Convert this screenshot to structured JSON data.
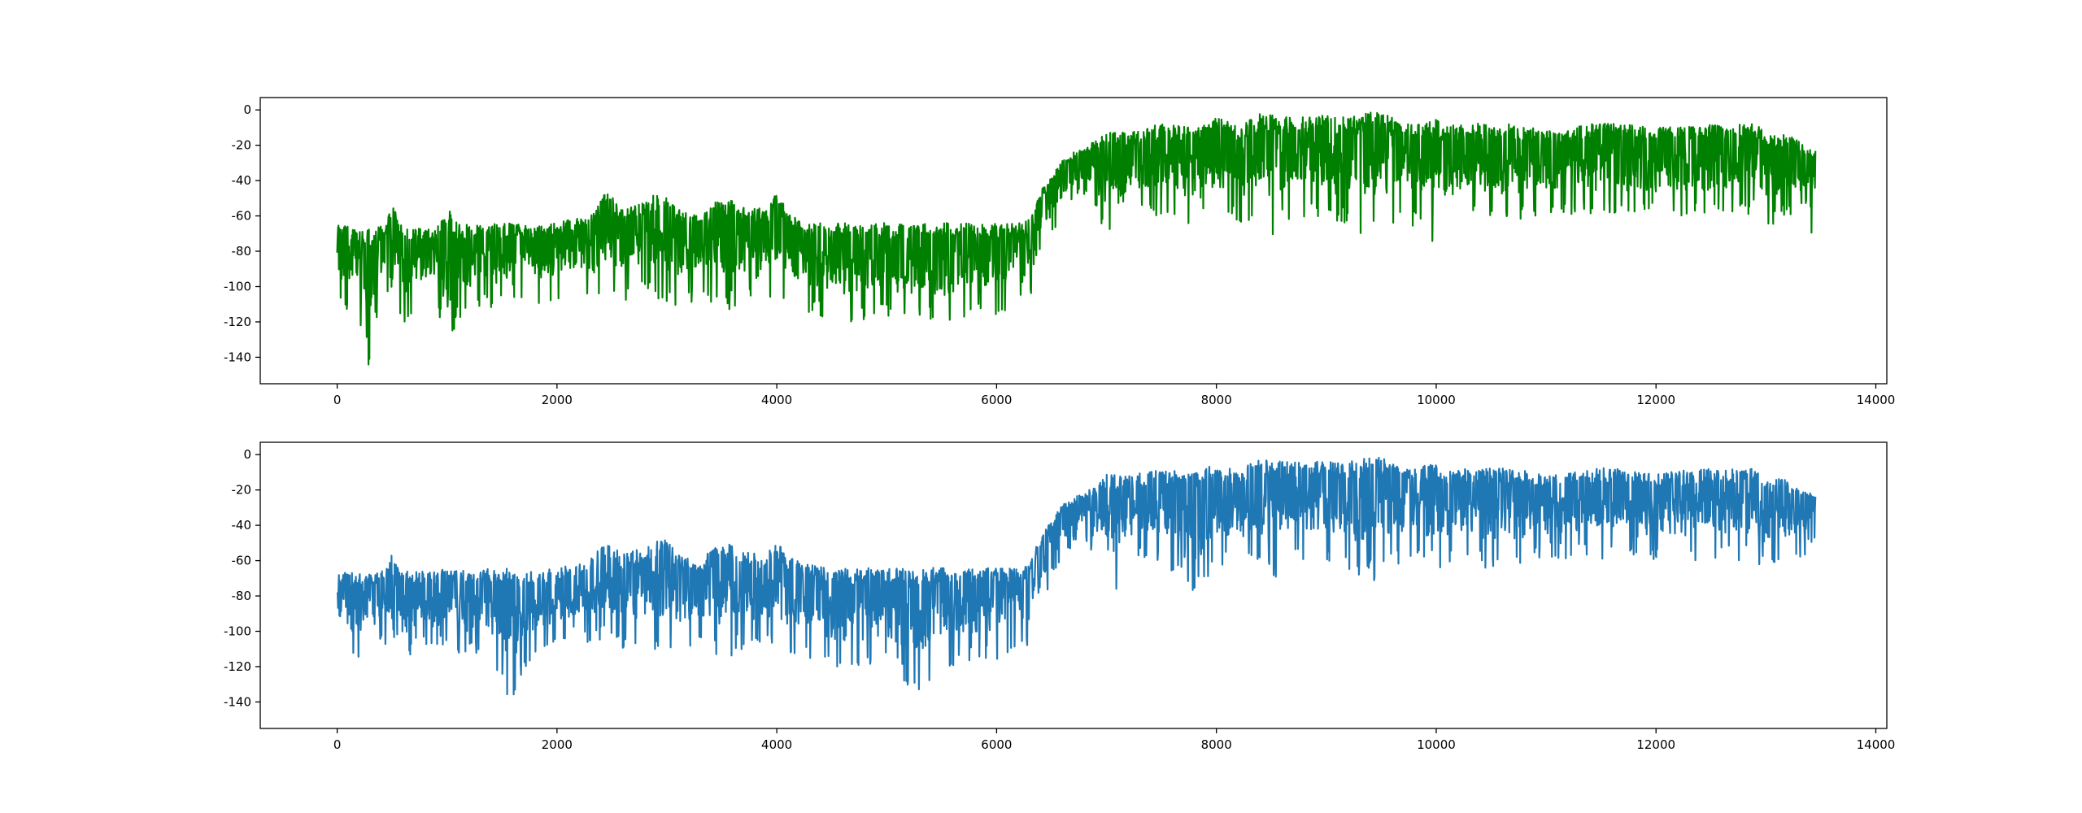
{
  "chart_data": [
    {
      "type": "line",
      "title": "",
      "xlabel": "",
      "ylabel": "",
      "xlim": [
        -700,
        14100
      ],
      "ylim": [
        -155,
        7
      ],
      "xticks": [
        0,
        2000,
        4000,
        6000,
        8000,
        10000,
        12000,
        14000
      ],
      "yticks": [
        0,
        -20,
        -40,
        -60,
        -80,
        -100,
        -120,
        -140
      ],
      "x_range": [
        0,
        13450
      ],
      "color": "#008000",
      "grid": false,
      "legend": "none",
      "series": [
        {
          "name": "",
          "x": [
            0,
            10,
            30,
            60,
            100,
            200,
            290,
            350,
            450,
            500,
            600,
            700,
            900,
            1020,
            1100,
            1300,
            1600,
            1800,
            2000,
            2200,
            2300,
            2450,
            2600,
            2800,
            2950,
            3100,
            3300,
            3500,
            3700,
            3900,
            4000,
            4100,
            4300,
            4600,
            5000,
            5400,
            5500,
            5700,
            6000,
            6200,
            6300,
            6340,
            6400,
            6500,
            6600,
            6700,
            6800,
            6900,
            7000,
            7100,
            7200,
            7500,
            7800,
            8000,
            8200,
            8400,
            8500,
            8700,
            9000,
            9200,
            9400,
            9500,
            9700,
            10000,
            10100,
            10300,
            10500,
            10800,
            11000,
            11500,
            12000,
            12500,
            12900,
            13000,
            13200,
            13350,
            13400,
            13420,
            13450
          ],
          "high": [
            -70,
            -63,
            -64,
            -65,
            -66,
            -66,
            -67,
            -67,
            -63,
            -54,
            -66,
            -66,
            -66,
            -57,
            -65,
            -65,
            -64,
            -66,
            -64,
            -60,
            -60,
            -46,
            -56,
            -52,
            -45,
            -56,
            -60,
            -47,
            -55,
            -56,
            -46,
            -58,
            -62,
            -64,
            -64,
            -64,
            -64,
            -64,
            -64,
            -64,
            -62,
            -55,
            -45,
            -38,
            -28,
            -24,
            -22,
            -17,
            -8,
            -12,
            -12,
            -8,
            -10,
            -4,
            -9,
            -2,
            -3,
            -4,
            -3,
            -4,
            -1,
            -1,
            -8,
            -5,
            -9,
            -8,
            -7,
            -9,
            -12,
            -7,
            -10,
            -8,
            -8,
            -12,
            -14,
            -20,
            -21,
            -22,
            -22
          ],
          "low": [
            -104,
            -118,
            -108,
            -126,
            -110,
            -118,
            -148,
            -120,
            -108,
            -100,
            -134,
            -112,
            -108,
            -144,
            -118,
            -112,
            -115,
            -110,
            -108,
            -103,
            -110,
            -104,
            -108,
            -105,
            -108,
            -112,
            -108,
            -115,
            -110,
            -112,
            -108,
            -113,
            -115,
            -121,
            -118,
            -121,
            -125,
            -118,
            -116,
            -113,
            -110,
            -92,
            -80,
            -70,
            -60,
            -50,
            -48,
            -60,
            -70,
            -78,
            -62,
            -60,
            -67,
            -62,
            -65,
            -60,
            -72,
            -60,
            -62,
            -68,
            -72,
            -70,
            -60,
            -80,
            -65,
            -60,
            -68,
            -62,
            -58,
            -60,
            -62,
            -60,
            -60,
            -68,
            -60,
            -58,
            -50,
            -82,
            -50
          ]
        }
      ]
    },
    {
      "type": "line",
      "title": "",
      "xlabel": "",
      "ylabel": "",
      "xlim": [
        -700,
        14100
      ],
      "ylim": [
        -155,
        7
      ],
      "xticks": [
        0,
        2000,
        4000,
        6000,
        8000,
        10000,
        12000,
        14000
      ],
      "yticks": [
        0,
        -20,
        -40,
        -60,
        -80,
        -100,
        -120,
        -140
      ],
      "x_range": [
        0,
        13450
      ],
      "color": "#1f77b4",
      "grid": false,
      "legend": "none",
      "series": [
        {
          "name": "",
          "x": [
            0,
            10,
            30,
            60,
            100,
            200,
            290,
            350,
            450,
            500,
            600,
            700,
            900,
            1020,
            1100,
            1300,
            1580,
            1800,
            2000,
            2200,
            2300,
            2450,
            2600,
            2800,
            2950,
            3100,
            3300,
            3500,
            3700,
            3900,
            4000,
            4100,
            4300,
            4600,
            5000,
            5300,
            5500,
            5700,
            6000,
            6200,
            6300,
            6340,
            6400,
            6500,
            6600,
            6700,
            6800,
            6900,
            7000,
            7100,
            7200,
            7500,
            7800,
            8000,
            8200,
            8400,
            8500,
            8700,
            9000,
            9200,
            9400,
            9500,
            9700,
            10000,
            10100,
            10300,
            10500,
            10800,
            11000,
            11500,
            12000,
            12500,
            12900,
            13000,
            13200,
            13350,
            13400,
            13420,
            13450
          ],
          "high": [
            -67,
            -66,
            -68,
            -66,
            -66,
            -67,
            -67,
            -66,
            -64,
            -55,
            -66,
            -66,
            -66,
            -63,
            -65,
            -65,
            -64,
            -66,
            -64,
            -62,
            -60,
            -47,
            -56,
            -52,
            -45,
            -56,
            -60,
            -48,
            -55,
            -56,
            -48,
            -58,
            -62,
            -64,
            -64,
            -64,
            -64,
            -64,
            -64,
            -64,
            -62,
            -55,
            -45,
            -38,
            -28,
            -24,
            -22,
            -17,
            -10,
            -12,
            -12,
            -8,
            -10,
            -5,
            -9,
            -2,
            -3,
            -4,
            -3,
            -4,
            -1,
            -1,
            -8,
            -5,
            -9,
            -8,
            -7,
            -9,
            -12,
            -7,
            -10,
            -8,
            -8,
            -12,
            -14,
            -20,
            -21,
            -22,
            -22
          ],
          "low": [
            -84,
            -93,
            -110,
            -95,
            -118,
            -115,
            -103,
            -110,
            -108,
            -100,
            -120,
            -112,
            -108,
            -110,
            -116,
            -112,
            -139,
            -112,
            -108,
            -103,
            -110,
            -104,
            -112,
            -105,
            -115,
            -112,
            -108,
            -118,
            -110,
            -112,
            -108,
            -113,
            -115,
            -125,
            -118,
            -140,
            -122,
            -118,
            -116,
            -113,
            -110,
            -90,
            -92,
            -70,
            -60,
            -50,
            -48,
            -60,
            -70,
            -78,
            -62,
            -60,
            -85,
            -62,
            -65,
            -60,
            -72,
            -60,
            -62,
            -68,
            -72,
            -70,
            -60,
            -65,
            -65,
            -60,
            -68,
            -62,
            -58,
            -60,
            -62,
            -60,
            -60,
            -68,
            -60,
            -58,
            -50,
            -52,
            -52
          ]
        }
      ]
    }
  ]
}
